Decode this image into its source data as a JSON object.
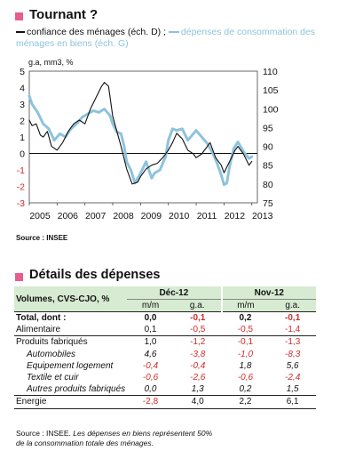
{
  "section1": {
    "title": "Tournant ?",
    "legend_series1": "confiance des ménages (éch. D) ;",
    "legend_series2": "dépenses de consommation des ménages en biens (éch. G)",
    "source": "Source : INSEE"
  },
  "chart_data": {
    "type": "line",
    "unit_label": "g.a, mm3, %",
    "left_axis": {
      "ylim": [
        -3,
        5
      ],
      "ticks": [
        "5",
        "4",
        "3",
        "2",
        "1",
        "0",
        "-1",
        "-2",
        "-3"
      ]
    },
    "right_axis": {
      "ylim": [
        75,
        110
      ],
      "ticks": [
        "110",
        "105",
        "100",
        "95",
        "90",
        "85",
        "80",
        "75"
      ]
    },
    "x_ticks": [
      "2005",
      "2006",
      "2007",
      "2008",
      "2009",
      "2010",
      "2011",
      "2012",
      "2013"
    ],
    "grid": false,
    "series": [
      {
        "name": "confiance des ménages (éch. D)",
        "axis": "right",
        "color": "#111111",
        "x": [
          2005.0,
          2005.1,
          2005.25,
          2005.4,
          2005.5,
          2005.65,
          2005.8,
          2006.0,
          2006.2,
          2006.4,
          2006.6,
          2006.8,
          2007.0,
          2007.2,
          2007.4,
          2007.6,
          2007.7,
          2007.85,
          2008.0,
          2008.15,
          2008.3,
          2008.5,
          2008.7,
          2008.9,
          2009.0,
          2009.2,
          2009.4,
          2009.6,
          2009.8,
          2010.0,
          2010.15,
          2010.3,
          2010.5,
          2010.7,
          2010.9,
          2011.0,
          2011.2,
          2011.4,
          2011.5,
          2011.7,
          2011.9,
          2012.0,
          2012.2,
          2012.4,
          2012.5,
          2012.7,
          2012.9,
          2013.0
        ],
        "values": [
          97,
          95.5,
          96,
          93,
          92.5,
          94,
          90,
          89,
          91,
          94,
          96,
          97,
          96,
          100,
          103,
          106,
          107,
          106,
          98,
          94,
          90,
          84,
          80,
          80.5,
          82,
          84,
          85,
          85.5,
          87,
          89,
          91,
          93.5,
          92,
          89,
          88,
          87,
          88,
          90,
          91,
          87,
          85,
          83,
          86,
          89,
          90,
          88,
          85,
          86
        ]
      },
      {
        "name": "dépenses de consommation des ménages en biens (éch. G)",
        "axis": "left",
        "color": "#8ec3dc",
        "x": [
          2005.0,
          2005.1,
          2005.3,
          2005.5,
          2005.7,
          2005.9,
          2006.1,
          2006.3,
          2006.5,
          2006.7,
          2006.9,
          2007.1,
          2007.3,
          2007.5,
          2007.7,
          2007.9,
          2008.0,
          2008.15,
          2008.3,
          2008.4,
          2008.5,
          2008.65,
          2008.8,
          2009.0,
          2009.2,
          2009.4,
          2009.5,
          2009.7,
          2009.9,
          2010.0,
          2010.15,
          2010.3,
          2010.5,
          2010.7,
          2010.9,
          2011.0,
          2011.2,
          2011.4,
          2011.6,
          2011.75,
          2011.9,
          2012.0,
          2012.1,
          2012.2,
          2012.35,
          2012.5,
          2012.6,
          2012.75,
          2012.9,
          2013.0
        ],
        "values": [
          3.5,
          3.0,
          2.5,
          1.8,
          1.5,
          0.8,
          1.2,
          1.0,
          1.5,
          1.8,
          2.2,
          2.4,
          2.6,
          2.5,
          2.7,
          2.3,
          1.8,
          1.3,
          1.2,
          0.5,
          -0.5,
          -1.0,
          -1.8,
          -1.2,
          -0.5,
          -1.5,
          -1.2,
          -1.0,
          -0.2,
          0.8,
          1.5,
          1.4,
          1.5,
          0.8,
          1.2,
          1.4,
          1.0,
          0.6,
          0.0,
          -0.6,
          -1.3,
          -1.9,
          -1.8,
          -0.8,
          0.3,
          0.7,
          0.4,
          0.0,
          -0.3,
          -0.2
        ]
      }
    ]
  },
  "section2": {
    "title": "Détails des dépenses",
    "table": {
      "header_label": "Volumes, CVS-CJO, %",
      "period1": "Déc-12",
      "period2": "Nov-12",
      "subheaders": [
        "m/m",
        "g.a.",
        "m/m",
        "g.a."
      ],
      "rows": [
        {
          "label": "Total, dont  :",
          "style": "bold",
          "values": [
            "0,0",
            "-0,1",
            "0,2",
            "-0,1"
          ]
        },
        {
          "label": "Alimentaire",
          "style": "bb",
          "values": [
            "0,1",
            "-0,5",
            "-0,5",
            "-1,4"
          ]
        },
        {
          "label": "Produits fabriqués",
          "style": "",
          "values": [
            "1,0",
            "-1,2",
            "-0,1",
            "-1,3"
          ]
        },
        {
          "label": "Automobiles",
          "style": "ind",
          "values": [
            "4,6",
            "-3,8",
            "-1,0",
            "-8,3"
          ]
        },
        {
          "label": "Equipement logement",
          "style": "ind",
          "values": [
            "-0,4",
            "-0,4",
            "1,8",
            "5,6"
          ]
        },
        {
          "label": "Textile et cuir",
          "style": "ind",
          "values": [
            "-0,6",
            "-2,6",
            "-0,6",
            "-2,4"
          ]
        },
        {
          "label": "Autres produits fabriqués",
          "style": "ind bb",
          "values": [
            "0,0",
            "1,3",
            "0,2",
            "1,5"
          ]
        },
        {
          "label": "Energie",
          "style": "bb",
          "values": [
            "-2,8",
            "4,0",
            "2,2",
            "6,1"
          ]
        }
      ]
    },
    "note": {
      "source_label": "Source : INSEE.",
      "line1": "Les dépenses en biens représentent 50%",
      "line2": "de la consommation totale des ménages."
    }
  }
}
